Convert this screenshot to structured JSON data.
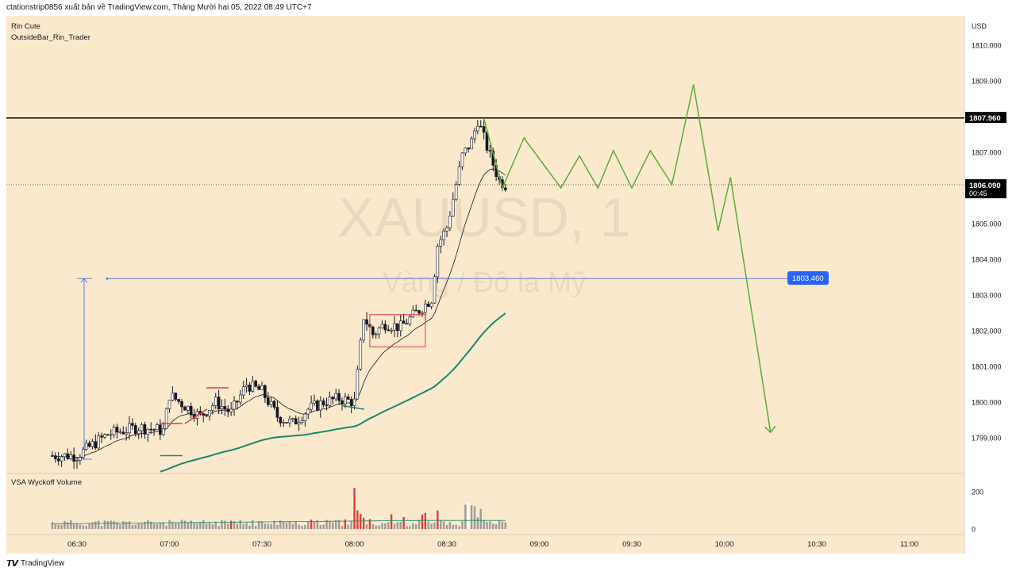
{
  "header": {
    "text": "ctationstrip0856 xuất bản về TradingView.com, Tháng Mười hai 05, 2022 08:49 UTC+7"
  },
  "indicators": {
    "line1": "Rln Cute",
    "line2": "OutsideBar_Rin_Trader",
    "volume_label": "VSA Wyckoff Volume"
  },
  "watermark": {
    "symbol": "XAUUSD, 1",
    "description": "Vàng / Đô la Mỹ"
  },
  "price_axis": {
    "currency": "USD",
    "ticks": [
      "1810.000",
      "1809.000",
      "1807.000",
      "1806.000",
      "1805.000",
      "1804.000",
      "1803.000",
      "1802.000",
      "1801.000",
      "1800.000",
      "1799.000"
    ]
  },
  "volume_axis": {
    "ticks": [
      "200",
      "0"
    ]
  },
  "time_axis": {
    "ticks": [
      "06:30",
      "07:00",
      "07:30",
      "08:00",
      "08:30",
      "09:00",
      "09:30",
      "10:00",
      "10:30",
      "11:00"
    ]
  },
  "labels": {
    "resistance": "1807.960",
    "last_price": "1806.090",
    "countdown": "00:45",
    "target": "1803.460"
  },
  "footer": {
    "logo": "𝙏𝙑",
    "brand": "TradingView"
  },
  "colors": {
    "background": "#fbe9cd",
    "up_candle": "#ffffff",
    "candle_outline": "#131722",
    "forecast": "#5aab3c",
    "measure": "#5a7de0",
    "ema": "#15896e",
    "volume_red": "#e53b3b",
    "resistance": "#000000",
    "target_label": "#2962ff"
  },
  "chart_data": {
    "type": "candlestick",
    "symbol": "XAUUSD",
    "timeframe": "1",
    "y_range": [
      1798.3,
      1810.6
    ],
    "x_range": [
      "06:15",
      "11:15"
    ],
    "horizontal_lines": [
      {
        "name": "resistance",
        "price": 1807.96
      },
      {
        "name": "last_price",
        "price": 1806.09,
        "style": "dotted"
      },
      {
        "name": "target",
        "price": 1803.46
      }
    ],
    "candles": [
      {
        "t": "06:22",
        "c": 1798.5
      },
      {
        "t": "06:30",
        "c": 1798.5
      },
      {
        "t": "06:40",
        "c": 1799.1
      },
      {
        "t": "06:50",
        "c": 1799.3
      },
      {
        "t": "06:58",
        "c": 1799.2
      },
      {
        "t": "07:00",
        "c": 1800.2
      },
      {
        "t": "07:05",
        "c": 1799.9
      },
      {
        "t": "07:10",
        "c": 1799.6
      },
      {
        "t": "07:15",
        "c": 1800.0
      },
      {
        "t": "07:20",
        "c": 1799.7
      },
      {
        "t": "07:25",
        "c": 1800.5
      },
      {
        "t": "07:30",
        "c": 1800.3
      },
      {
        "t": "07:35",
        "c": 1799.6
      },
      {
        "t": "07:40",
        "c": 1799.4
      },
      {
        "t": "07:45",
        "c": 1799.8
      },
      {
        "t": "07:50",
        "c": 1800.0
      },
      {
        "t": "07:55",
        "c": 1800.1
      },
      {
        "t": "08:00",
        "c": 1800.0
      },
      {
        "t": "08:03",
        "c": 1802.4
      },
      {
        "t": "08:06",
        "c": 1801.9
      },
      {
        "t": "08:10",
        "c": 1802.2
      },
      {
        "t": "08:15",
        "c": 1802.1
      },
      {
        "t": "08:20",
        "c": 1802.5
      },
      {
        "t": "08:25",
        "c": 1802.9
      },
      {
        "t": "08:27",
        "c": 1804.4
      },
      {
        "t": "08:30",
        "c": 1804.9
      },
      {
        "t": "08:35",
        "c": 1806.9
      },
      {
        "t": "08:38",
        "c": 1807.3
      },
      {
        "t": "08:40",
        "c": 1807.9
      },
      {
        "t": "08:44",
        "c": 1806.9
      },
      {
        "t": "08:47",
        "c": 1806.2
      },
      {
        "t": "08:49",
        "c": 1806.09
      }
    ],
    "forecast_path": [
      {
        "t": "08:42",
        "p": 1807.95
      },
      {
        "t": "08:48",
        "p": 1806.0
      },
      {
        "t": "08:55",
        "p": 1807.4
      },
      {
        "t": "09:07",
        "p": 1806.0
      },
      {
        "t": "09:13",
        "p": 1806.9
      },
      {
        "t": "09:19",
        "p": 1806.0
      },
      {
        "t": "09:24",
        "p": 1807.05
      },
      {
        "t": "09:30",
        "p": 1806.0
      },
      {
        "t": "09:36",
        "p": 1807.05
      },
      {
        "t": "09:43",
        "p": 1806.1
      },
      {
        "t": "09:50",
        "p": 1808.9
      },
      {
        "t": "09:58",
        "p": 1804.8
      },
      {
        "t": "10:02",
        "p": 1806.3
      },
      {
        "t": "10:15",
        "p": 1799.15
      }
    ],
    "volume_range": [
      0,
      230
    ]
  }
}
